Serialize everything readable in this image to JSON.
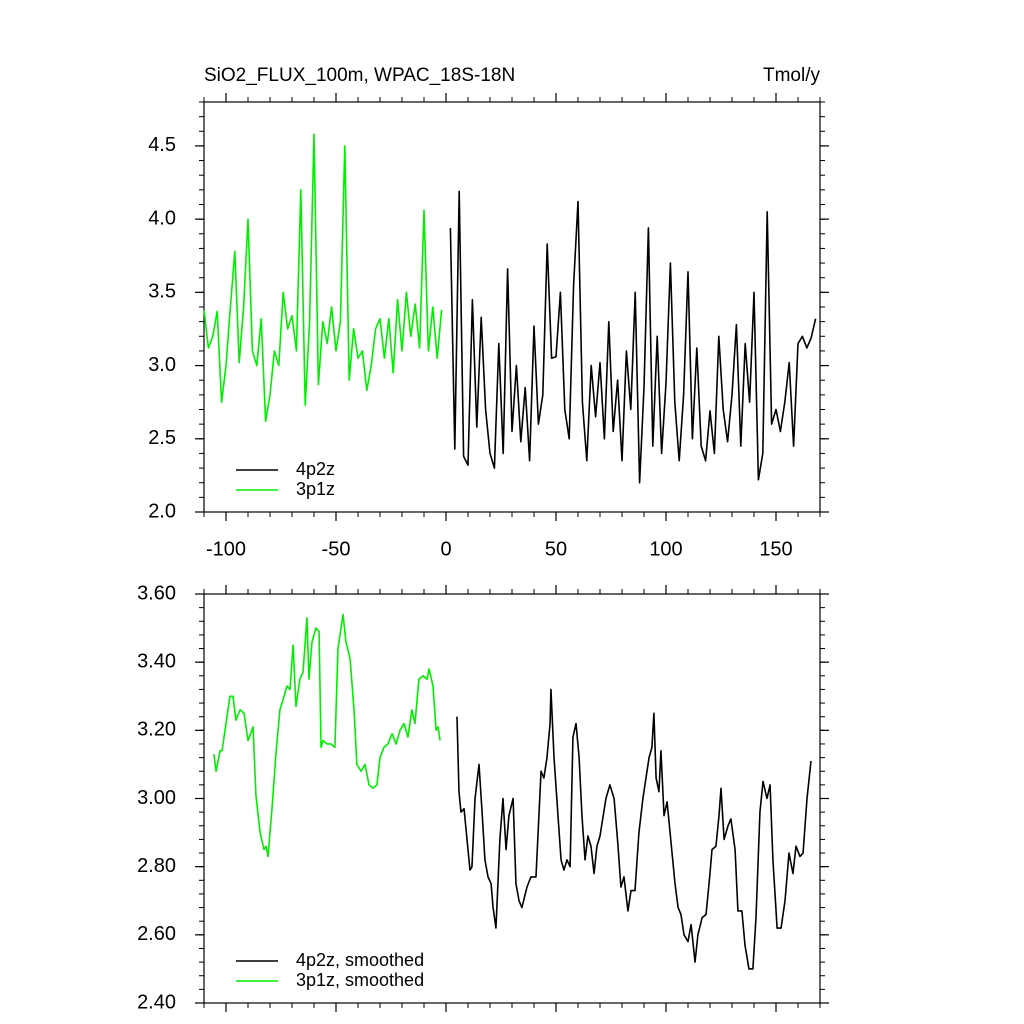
{
  "chart_data": [
    {
      "type": "line",
      "title": "SiO2_FLUX_100m, WPAC_18S-18N",
      "units": "Tmol/y",
      "xlim": [
        -110,
        170
      ],
      "xticks": [
        -100,
        -50,
        0,
        50,
        100,
        150
      ],
      "show_xtick_labels": true,
      "ylim": [
        2.0,
        4.8
      ],
      "yticks": [
        {
          "value": 2.0,
          "label": "2.0"
        },
        {
          "value": 2.5,
          "label": "2.5"
        },
        {
          "value": 3.0,
          "label": "3.0"
        },
        {
          "value": 3.5,
          "label": "3.5"
        },
        {
          "value": 4.0,
          "label": "4.0"
        },
        {
          "value": 4.5,
          "label": "4.5"
        }
      ],
      "legend": "lower left",
      "series": [
        {
          "name": "4p2z",
          "color": "#000000",
          "x": [
            2,
            4,
            6,
            8,
            10,
            12,
            14,
            16,
            18,
            20,
            22,
            24,
            26,
            28,
            30,
            32,
            34,
            36,
            38,
            40,
            42,
            44,
            46,
            48,
            50,
            52,
            54,
            56,
            58,
            60,
            62,
            64,
            66,
            68,
            70,
            72,
            74,
            76,
            78,
            80,
            82,
            84,
            86,
            88,
            90,
            92,
            94,
            96,
            98,
            100,
            102,
            104,
            106,
            108,
            110,
            112,
            114,
            116,
            118,
            120,
            122,
            124,
            126,
            128,
            130,
            132,
            134,
            136,
            138,
            140,
            142,
            144,
            146,
            148,
            150,
            152,
            154,
            156,
            158,
            160,
            162,
            164,
            166,
            168
          ],
          "values": [
            3.94,
            2.43,
            4.19,
            2.38,
            2.32,
            3.45,
            2.58,
            3.33,
            2.7,
            2.4,
            2.3,
            3.15,
            2.4,
            3.66,
            2.55,
            3.0,
            2.48,
            2.85,
            2.35,
            3.27,
            2.6,
            2.8,
            3.83,
            3.05,
            3.06,
            3.5,
            2.7,
            2.5,
            3.55,
            4.12,
            2.75,
            2.35,
            3.0,
            2.65,
            3.02,
            2.5,
            3.3,
            2.55,
            2.9,
            2.35,
            3.1,
            2.7,
            3.5,
            2.2,
            2.85,
            3.94,
            2.45,
            3.2,
            2.4,
            2.88,
            3.7,
            2.75,
            2.35,
            2.8,
            3.64,
            2.5,
            3.12,
            2.45,
            2.35,
            2.69,
            2.4,
            3.2,
            2.7,
            2.48,
            2.8,
            3.28,
            2.45,
            3.15,
            2.75,
            3.5,
            2.22,
            2.4,
            4.05,
            2.6,
            2.7,
            2.55,
            2.75,
            3.02,
            2.45,
            3.15,
            3.2,
            3.12,
            3.19,
            3.32
          ]
        },
        {
          "name": "3p1z",
          "color": "#00ee00",
          "x": [
            -110,
            -108,
            -106,
            -104,
            -102,
            -100,
            -98,
            -96,
            -94,
            -92,
            -90,
            -88,
            -86,
            -84,
            -82,
            -80,
            -78,
            -76,
            -74,
            -72,
            -70,
            -68,
            -66,
            -64,
            -62,
            -60,
            -58,
            -56,
            -54,
            -52,
            -50,
            -48,
            -46,
            -44,
            -42,
            -40,
            -38,
            -36,
            -34,
            -32,
            -30,
            -28,
            -26,
            -24,
            -22,
            -20,
            -18,
            -16,
            -14,
            -12,
            -10,
            -8,
            -6,
            -4,
            -2
          ],
          "values": [
            3.38,
            3.12,
            3.2,
            3.37,
            2.75,
            3.0,
            3.4,
            3.78,
            3.02,
            3.4,
            4.0,
            3.1,
            3.0,
            3.32,
            2.62,
            2.8,
            3.1,
            3.0,
            3.5,
            3.25,
            3.34,
            3.1,
            4.2,
            2.73,
            3.3,
            4.58,
            2.87,
            3.3,
            3.15,
            3.4,
            3.1,
            3.3,
            4.5,
            2.9,
            3.25,
            3.05,
            3.1,
            2.83,
            3.0,
            3.25,
            3.32,
            3.05,
            3.32,
            2.95,
            3.45,
            3.1,
            3.5,
            3.2,
            3.42,
            3.12,
            4.06,
            3.1,
            3.4,
            3.05,
            3.38
          ]
        }
      ]
    },
    {
      "type": "line",
      "xlim": [
        -110,
        170
      ],
      "xticks": [
        -100,
        -50,
        0,
        50,
        100,
        150
      ],
      "show_xtick_labels": false,
      "ylim": [
        2.4,
        3.6
      ],
      "yticks": [
        {
          "value": 2.4,
          "label": "2.40"
        },
        {
          "value": 2.6,
          "label": "2.60"
        },
        {
          "value": 2.8,
          "label": "2.80"
        },
        {
          "value": 3.0,
          "label": "3.00"
        },
        {
          "value": 3.2,
          "label": "3.20"
        },
        {
          "value": 3.4,
          "label": "3.40"
        },
        {
          "value": 3.6,
          "label": "3.60"
        }
      ],
      "legend": "lower left",
      "series": [
        {
          "name": "4p2z, smoothed",
          "color": "#000000",
          "x": [
            5,
            5.9,
            6.8,
            8.2,
            10.9,
            11.8,
            13.2,
            15,
            16.4,
            17.7,
            19.1,
            20.5,
            21.4,
            22.7,
            24.5,
            25.9,
            27.3,
            28.6,
            30.5,
            31.8,
            33.2,
            34.5,
            36.8,
            38.6,
            40.9,
            43.2,
            44.5,
            45.9,
            47.3,
            47.7,
            49.1,
            50.9,
            52.3,
            53.6,
            55,
            56.4,
            57.7,
            59.1,
            60.5,
            61.8,
            63.2,
            64.5,
            65.9,
            67.3,
            68.6,
            70,
            72.7,
            74.5,
            76.4,
            78.2,
            79.5,
            80.9,
            82.7,
            84.1,
            85.9,
            87.7,
            89.5,
            90.9,
            92.3,
            93.6,
            94.5,
            95.5,
            96.8,
            97.7,
            99.1,
            100.5,
            102.3,
            104.1,
            105.5,
            106.8,
            108.2,
            110,
            111.4,
            113.2,
            114.5,
            116.4,
            118.2,
            120,
            120.9,
            122.7,
            124.1,
            125,
            126.4,
            128.2,
            129.5,
            131.4,
            132.7,
            134.5,
            135.9,
            137.7,
            139.5,
            140.9,
            142.7,
            144.1,
            145.9,
            147.3,
            148.6,
            150.5,
            152.3,
            154.1,
            155.9,
            157.7,
            159.1,
            160.9,
            162.3,
            164.1,
            165.9
          ],
          "values": [
            3.24,
            3.02,
            2.96,
            2.97,
            2.79,
            2.8,
            3.0,
            3.1,
            2.96,
            2.82,
            2.77,
            2.75,
            2.68,
            2.62,
            2.88,
            3.0,
            2.85,
            2.95,
            3.0,
            2.75,
            2.7,
            2.68,
            2.74,
            2.77,
            2.77,
            3.08,
            3.06,
            3.12,
            3.22,
            3.32,
            3.12,
            2.95,
            2.82,
            2.79,
            2.82,
            2.8,
            3.18,
            3.22,
            3.12,
            2.95,
            2.82,
            2.89,
            2.86,
            2.78,
            2.86,
            2.89,
            3.0,
            3.04,
            3.0,
            2.86,
            2.74,
            2.77,
            2.67,
            2.73,
            2.73,
            2.9,
            3.0,
            3.06,
            3.12,
            3.15,
            3.25,
            3.06,
            3.02,
            3.14,
            2.95,
            2.99,
            2.87,
            2.75,
            2.68,
            2.66,
            2.6,
            2.58,
            2.63,
            2.52,
            2.6,
            2.65,
            2.66,
            2.78,
            2.85,
            2.86,
            2.95,
            3.03,
            2.88,
            2.92,
            2.94,
            2.85,
            2.67,
            2.67,
            2.57,
            2.5,
            2.5,
            2.65,
            2.96,
            3.05,
            3.0,
            3.04,
            2.82,
            2.62,
            2.62,
            2.7,
            2.84,
            2.78,
            2.86,
            2.83,
            2.84,
            3.0,
            3.11
          ]
        },
        {
          "name": "3p1z, smoothed",
          "color": "#00ee00",
          "x": [
            -105.5,
            -104.5,
            -102.7,
            -101.8,
            -100,
            -98.2,
            -96.8,
            -95.5,
            -93.6,
            -91.8,
            -90,
            -87.7,
            -86.4,
            -84.5,
            -82.7,
            -81.8,
            -80.9,
            -79.1,
            -77.3,
            -75.5,
            -73.6,
            -72.3,
            -70.9,
            -69.5,
            -68.2,
            -66.4,
            -65,
            -63.2,
            -62.3,
            -60.9,
            -59.1,
            -57.7,
            -56.8,
            -55.9,
            -54.1,
            -52.3,
            -50.5,
            -49.1,
            -46.8,
            -45.5,
            -43.6,
            -41.8,
            -40.5,
            -38.6,
            -36.8,
            -35,
            -33.2,
            -31.4,
            -30,
            -28.2,
            -26.4,
            -24.5,
            -22.7,
            -20.9,
            -19.1,
            -17.3,
            -15.5,
            -14.1,
            -12.3,
            -10.5,
            -8.6,
            -7.7,
            -5.9,
            -4.5,
            -3.6,
            -2.7
          ],
          "values": [
            3.13,
            3.08,
            3.14,
            3.14,
            3.22,
            3.3,
            3.3,
            3.23,
            3.26,
            3.25,
            3.17,
            3.21,
            3.01,
            2.9,
            2.85,
            2.86,
            2.83,
            2.97,
            3.13,
            3.26,
            3.3,
            3.33,
            3.32,
            3.45,
            3.27,
            3.35,
            3.37,
            3.53,
            3.35,
            3.46,
            3.5,
            3.49,
            3.15,
            3.17,
            3.16,
            3.16,
            3.15,
            3.44,
            3.54,
            3.46,
            3.41,
            3.26,
            3.1,
            3.08,
            3.1,
            3.04,
            3.03,
            3.04,
            3.12,
            3.15,
            3.16,
            3.19,
            3.16,
            3.2,
            3.22,
            3.18,
            3.26,
            3.22,
            3.35,
            3.36,
            3.35,
            3.38,
            3.33,
            3.2,
            3.21,
            3.17
          ]
        }
      ]
    }
  ]
}
